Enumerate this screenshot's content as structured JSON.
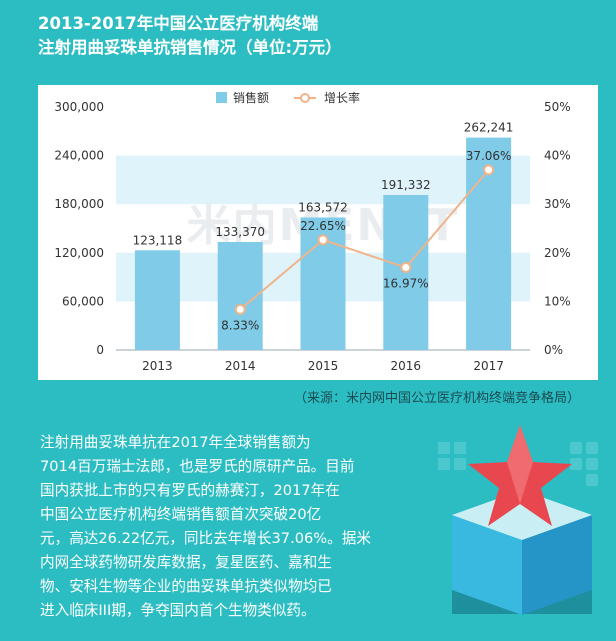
{
  "title": {
    "line1": "2013-2017年中国公立医疗机构终端",
    "line2": "注射用曲妥珠单抗销售情况（单位:万元）"
  },
  "chart_data": {
    "type": "bar",
    "categories": [
      "2013",
      "2014",
      "2015",
      "2016",
      "2017"
    ],
    "series": [
      {
        "name": "销售额",
        "type": "bar",
        "axis": "left",
        "values": [
          123118,
          133370,
          163572,
          191332,
          262241
        ],
        "labels": [
          "123,118",
          "133,370",
          "163,572",
          "191,332",
          "262,241"
        ],
        "color": "#7fcbe8"
      },
      {
        "name": "增长率",
        "type": "line",
        "axis": "right",
        "values": [
          null,
          8.33,
          22.65,
          16.97,
          37.06
        ],
        "labels": [
          "",
          "8.33%",
          "22.65%",
          "16.97%",
          "37.06%"
        ],
        "color": "#f0b48a"
      }
    ],
    "y_left": {
      "min": 0,
      "max": 300000,
      "ticks": [
        0,
        60000,
        120000,
        180000,
        240000,
        300000
      ],
      "tick_labels": [
        "0",
        "60,000",
        "120,000",
        "180,000",
        "240,000",
        "300,000"
      ]
    },
    "y_right": {
      "min": 0,
      "max": 50,
      "ticks": [
        0,
        10,
        20,
        30,
        40,
        50
      ],
      "tick_labels": [
        "0%",
        "10%",
        "20%",
        "30%",
        "40%",
        "50%"
      ]
    },
    "legend_position": "top-left",
    "band_color": "#dff3fa",
    "watermark": "米内MENET"
  },
  "source": "（来源：米内网中国公立医疗机构终端竞争格局）",
  "description": [
    "注射用曲妥珠单抗在2017年全球销售额为",
    "7014百万瑞士法郎，也是罗氏的原研产品。目前",
    "国内获批上市的只有罗氏的赫赛汀，2017年在",
    "中国公立医疗机构终端销售额首次突破20亿",
    "元，高达26.22亿元，同比去年增长37.06%。据米",
    "内网全球药物研发库数据，复星医药、嘉和生",
    "物、安科生物等企业的曲妥珠单抗类似物均已",
    "进入临床III期，争夺国内首个生物类似药。"
  ]
}
